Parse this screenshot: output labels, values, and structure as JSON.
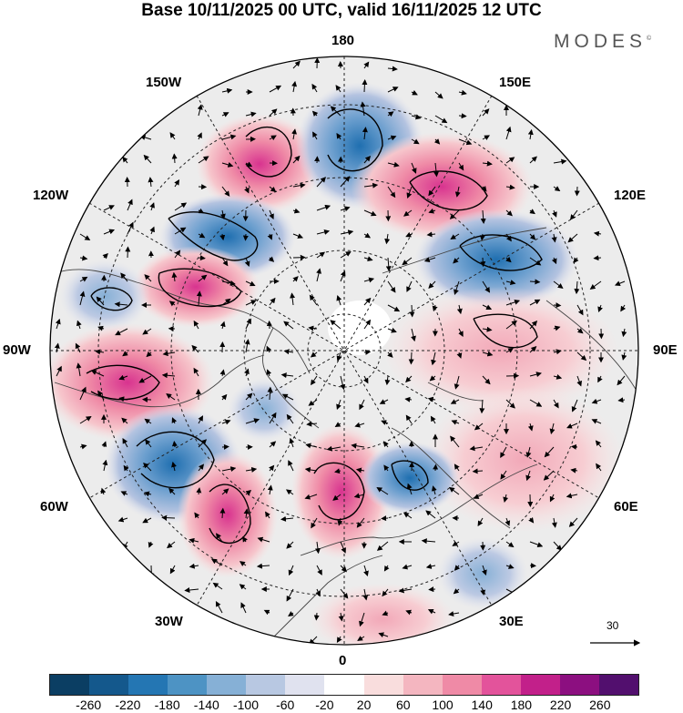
{
  "title": "Base 10/11/2025 00 UTC, valid 16/11/2025 12 UTC",
  "brand": "MODES",
  "brand_mark": "©",
  "longitude_labels": {
    "top": "180",
    "bottom": "0",
    "left": "90W",
    "right": "90E",
    "upper_left_1": "150W",
    "upper_left_2": "120W",
    "upper_right_1": "150E",
    "upper_right_2": "120E",
    "lower_left_1": "60W",
    "lower_left_2": "30W",
    "lower_right_1": "60E",
    "lower_right_2": "30E"
  },
  "wind_scale_label": "30",
  "colorbar": {
    "colors": [
      "#0b3e63",
      "#14588c",
      "#2476b3",
      "#4d93c4",
      "#86b0d6",
      "#b8c8e2",
      "#e0e2ef",
      "#ffffff",
      "#f9dddd",
      "#f4b6c0",
      "#ef8aa6",
      "#e3539b",
      "#c2208a",
      "#8c0f80",
      "#520f6e"
    ],
    "tick_labels": [
      "-260",
      "-220",
      "-180",
      "-140",
      "-100",
      "-60",
      "-20",
      "20",
      "60",
      "100",
      "140",
      "180",
      "220",
      "260"
    ]
  },
  "anomaly_colors": {
    "neg_strong": "#2476b3",
    "neg_mid": "#86b0d6",
    "neg_weak": "#c8cfe6",
    "pos_weak": "#f6d0d2",
    "pos_mid": "#f2a8b8",
    "pos_strong": "#e3539b",
    "neutral": "#ececec",
    "land_line": "#444444"
  }
}
